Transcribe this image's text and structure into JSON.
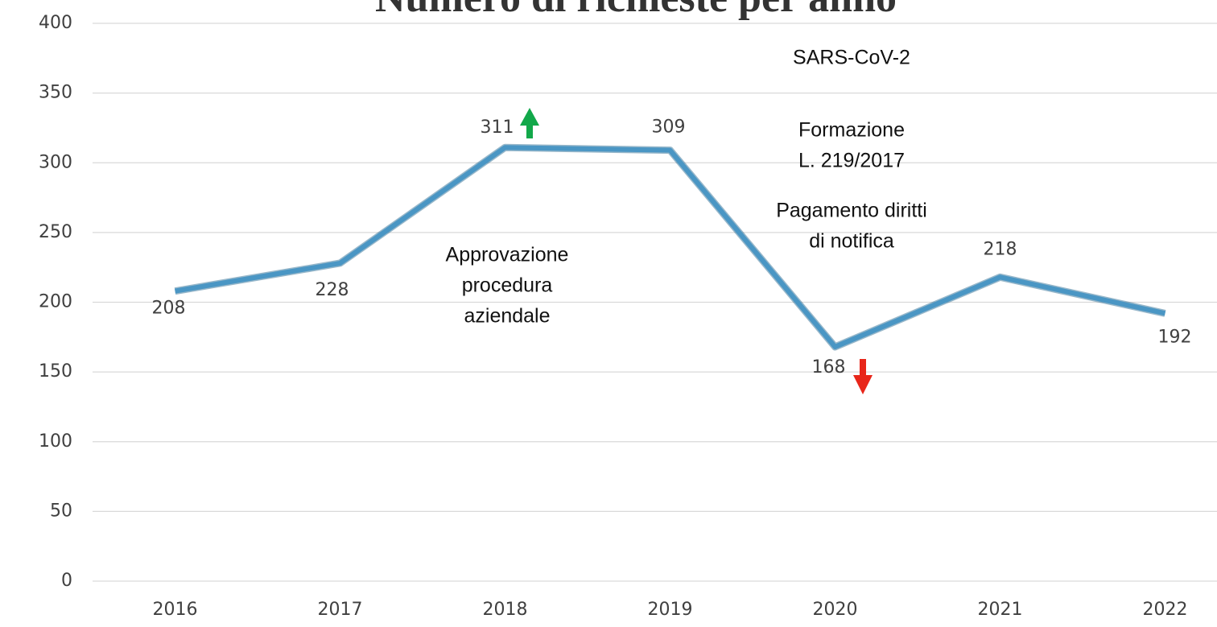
{
  "chart_data": {
    "type": "line",
    "title": "Numero di richieste per anno",
    "categories": [
      "2016",
      "2017",
      "2018",
      "2019",
      "2020",
      "2021",
      "2022"
    ],
    "series": [
      {
        "color": "#4a96c4",
        "values": [
          208,
          228,
          311,
          309,
          168,
          218,
          192
        ]
      }
    ],
    "ylim": [
      0,
      400
    ],
    "yticks": [
      0,
      50,
      100,
      150,
      200,
      250,
      300,
      350,
      400
    ],
    "grid": true,
    "annotations": [
      {
        "lines": [
          "SARS-CoV-2"
        ]
      },
      {
        "lines": [
          "Formazione",
          "L. 219/2017"
        ]
      },
      {
        "lines": [
          "Pagamento diritti",
          "di notifica"
        ]
      },
      {
        "lines": [
          "Approvazione",
          "procedura",
          "aziendale"
        ]
      }
    ]
  }
}
